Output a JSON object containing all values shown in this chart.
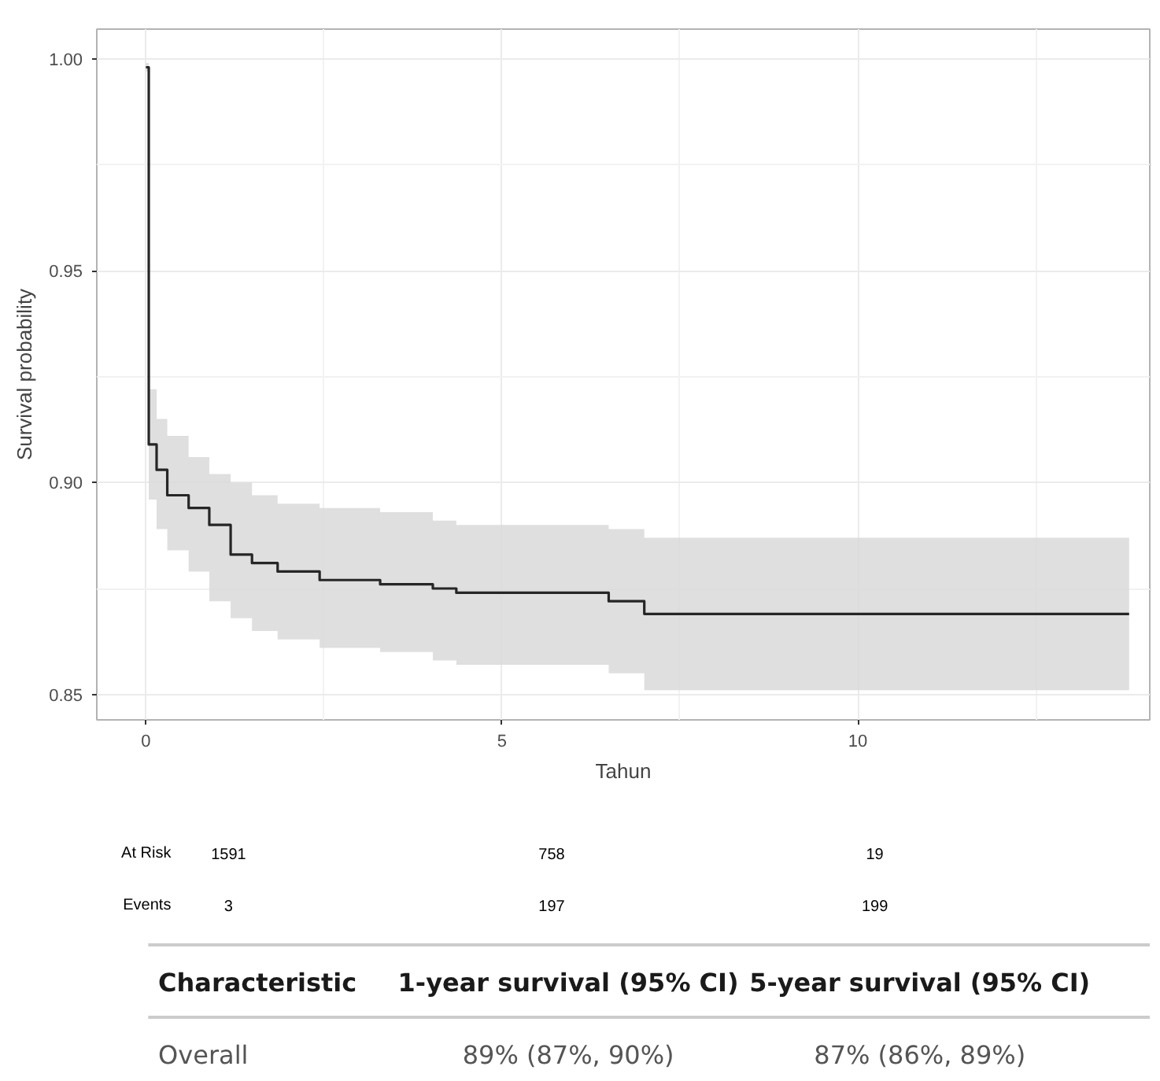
{
  "chart_data": {
    "type": "step",
    "xlabel": "Tahun",
    "ylabel": "Survival probability",
    "xlim": [
      -0.69,
      14.1
    ],
    "ylim": [
      0.844,
      1.007
    ],
    "xticks": [
      0,
      5,
      10
    ],
    "yticks": [
      0.85,
      {
        "value": 0.9,
        "label": "0.90"
      },
      0.95,
      {
        "value": 1.0,
        "label": "1.00"
      }
    ],
    "grid": true,
    "series": [
      {
        "color": "#262626",
        "x": [
          0,
          0.04,
          0.15,
          0.3,
          0.6,
          0.89,
          1.19,
          1.49,
          1.85,
          2.44,
          3.29,
          4.03,
          4.36,
          6.5,
          7.0,
          13.81
        ],
        "values": [
          0.998,
          0.909,
          0.903,
          0.897,
          0.894,
          0.89,
          0.883,
          0.881,
          0.879,
          0.877,
          0.876,
          0.875,
          0.874,
          0.872,
          0.869,
          0.869
        ],
        "upper": [
          0.999,
          0.922,
          0.915,
          0.911,
          0.906,
          0.902,
          0.9,
          0.897,
          0.895,
          0.894,
          0.893,
          0.891,
          0.89,
          0.889,
          0.887,
          0.887
        ],
        "lower": [
          0.997,
          0.896,
          0.889,
          0.884,
          0.879,
          0.872,
          0.868,
          0.865,
          0.863,
          0.861,
          0.86,
          0.858,
          0.857,
          0.855,
          0.851,
          0.851
        ]
      }
    ],
    "annotations": [
      "At Risk",
      "1591",
      "758",
      "19",
      "Events",
      "3",
      "197",
      "199",
      "Characteristic",
      "1-year survival (95% CI)",
      "5-year survival (95% CI)",
      "Overall",
      "89% (87%, 90%)",
      "87% (86%, 89%)"
    ]
  }
}
